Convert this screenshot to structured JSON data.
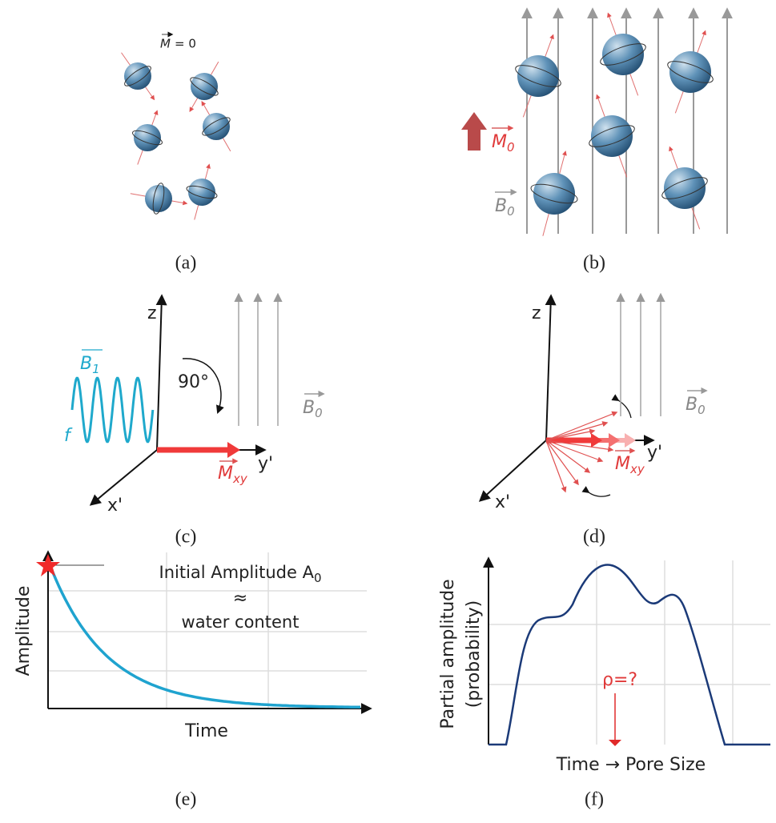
{
  "panels": {
    "a": {
      "label": "(a)",
      "magnetization": {
        "symbol": "M",
        "rest": "= 0"
      }
    },
    "b": {
      "label": "(b)",
      "magnetization": {
        "symbol": "M",
        "subscript": "0"
      },
      "field": {
        "symbol": "B",
        "subscript": "0"
      }
    },
    "c": {
      "label": "(c)",
      "z_axis": "z",
      "y_axis": "y'",
      "x_axis": "x'",
      "rf_field": {
        "symbol": "B",
        "subscript": "1"
      },
      "frequency": "f",
      "flip_angle": "90°",
      "magnetization": {
        "symbol": "M",
        "subscript": "xy"
      },
      "field": {
        "symbol": "B",
        "subscript": "0"
      }
    },
    "d": {
      "label": "(d)",
      "z_axis": "z",
      "y_axis": "y'",
      "x_axis": "x'",
      "magnetization": {
        "symbol": "M",
        "subscript": "xy"
      },
      "field": {
        "symbol": "B",
        "subscript": "0"
      }
    },
    "e": {
      "label": "(e)",
      "annotation": {
        "text": "Initial Amplitude A",
        "subscript": "0"
      },
      "approx": "≈",
      "annotation_2": "water content",
      "y_label": "Amplitude",
      "x_label": "Time"
    },
    "f": {
      "label": "(f)",
      "y_label_1": "Partial amplitude",
      "y_label_2": "(probability)",
      "marker": "ρ=?",
      "x_label": "Time → Pore Size"
    }
  }
}
